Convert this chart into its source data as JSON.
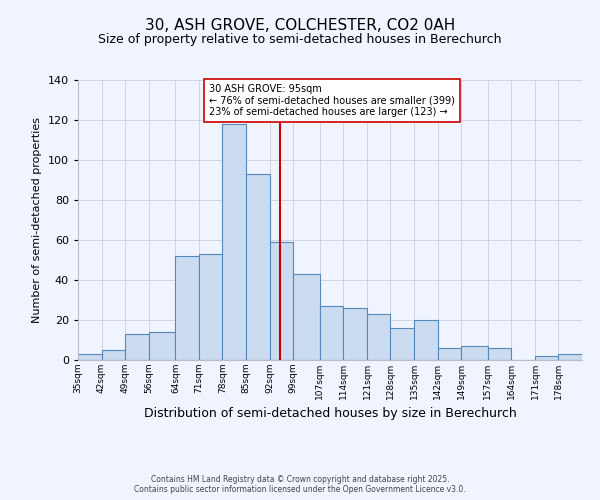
{
  "title": "30, ASH GROVE, COLCHESTER, CO2 0AH",
  "subtitle": "Size of property relative to semi-detached houses in Berechurch",
  "xlabel": "Distribution of semi-detached houses by size in Berechurch",
  "ylabel": "Number of semi-detached properties",
  "bin_labels": [
    "35sqm",
    "42sqm",
    "49sqm",
    "56sqm",
    "64sqm",
    "71sqm",
    "78sqm",
    "85sqm",
    "92sqm",
    "99sqm",
    "107sqm",
    "114sqm",
    "121sqm",
    "128sqm",
    "135sqm",
    "142sqm",
    "149sqm",
    "157sqm",
    "164sqm",
    "171sqm",
    "178sqm"
  ],
  "bin_edges": [
    35,
    42,
    49,
    56,
    64,
    71,
    78,
    85,
    92,
    99,
    107,
    114,
    121,
    128,
    135,
    142,
    149,
    157,
    164,
    171,
    178,
    185
  ],
  "counts": [
    3,
    5,
    13,
    14,
    52,
    53,
    118,
    93,
    59,
    43,
    27,
    26,
    23,
    16,
    20,
    6,
    7,
    6,
    0,
    2,
    3
  ],
  "bar_facecolor": "#ccdcf0",
  "bar_edgecolor": "#5588bb",
  "property_value": 95,
  "vline_color": "#cc0000",
  "annotation_title": "30 ASH GROVE: 95sqm",
  "annotation_line1": "← 76% of semi-detached houses are smaller (399)",
  "annotation_line2": "23% of semi-detached houses are larger (123) →",
  "annotation_box_edgecolor": "#cc0000",
  "annotation_box_facecolor": "#ffffff",
  "ylim": [
    0,
    140
  ],
  "yticks": [
    0,
    20,
    40,
    60,
    80,
    100,
    120,
    140
  ],
  "footer1": "Contains HM Land Registry data © Crown copyright and database right 2025.",
  "footer2": "Contains public sector information licensed under the Open Government Licence v3.0.",
  "bg_color": "#f0f4ff",
  "grid_color": "#c8cee0",
  "title_fontsize": 11,
  "subtitle_fontsize": 9,
  "xlabel_fontsize": 9,
  "ylabel_fontsize": 8
}
